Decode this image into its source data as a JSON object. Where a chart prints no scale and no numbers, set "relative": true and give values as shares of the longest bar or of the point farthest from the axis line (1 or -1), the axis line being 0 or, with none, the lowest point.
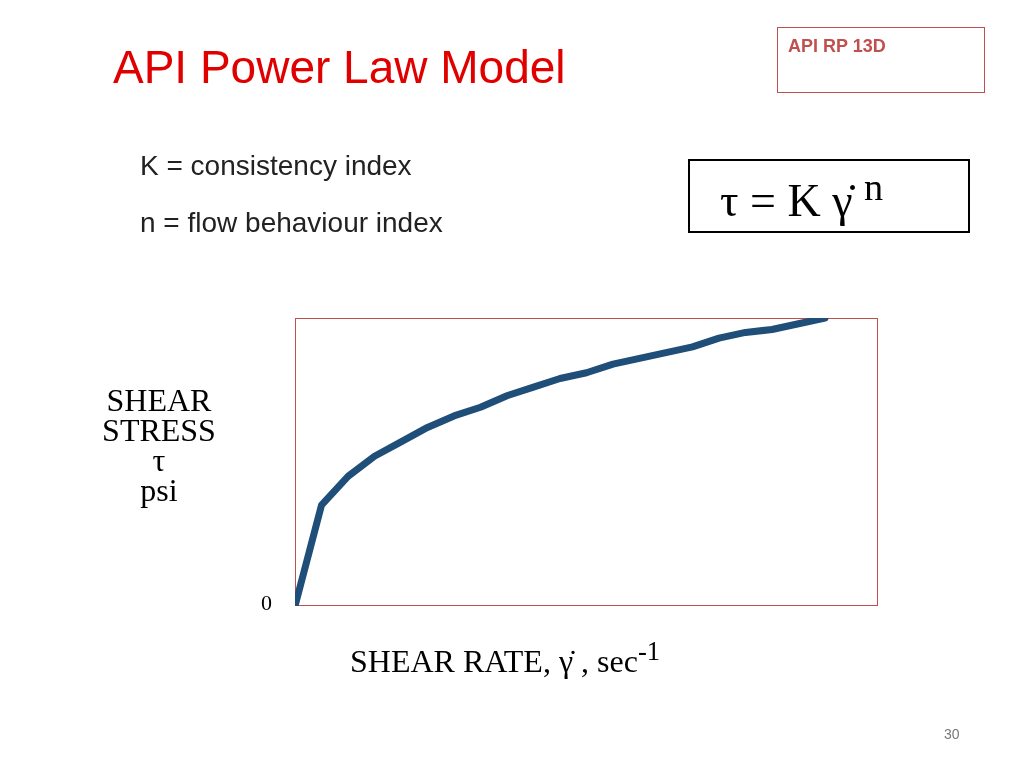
{
  "chart_data": {
    "type": "line",
    "relative": true,
    "title": "API Power Law Model",
    "xlabel": "SHEAR RATE,  γ̇ ,  sec$^{-1}$",
    "ylabel": "SHEAR\nSTRESS\nτ\npsi",
    "annotations": [
      "API RP 13D",
      "K = consistency index",
      "n = flow behaviour index",
      "τ = K  γ̇ $^{n}$",
      "0",
      "30"
    ],
    "categories": [
      null,
      null,
      null,
      null,
      null,
      null,
      null,
      null,
      null,
      null,
      null,
      null,
      null,
      null,
      null,
      null,
      null,
      null,
      null,
      null,
      null,
      null,
      null
    ],
    "series": [
      {
        "color": "#1f4e79",
        "values": [
          0,
          0.35,
          0.45,
          0.52,
          0.57,
          0.62,
          0.66,
          0.69,
          0.73,
          0.76,
          0.79,
          0.81,
          0.84,
          0.86,
          0.88,
          0.9,
          0.93,
          0.95,
          0.96,
          0.98,
          1,
          null,
          null
        ]
      }
    ],
    "line_style": "solid"
  }
}
